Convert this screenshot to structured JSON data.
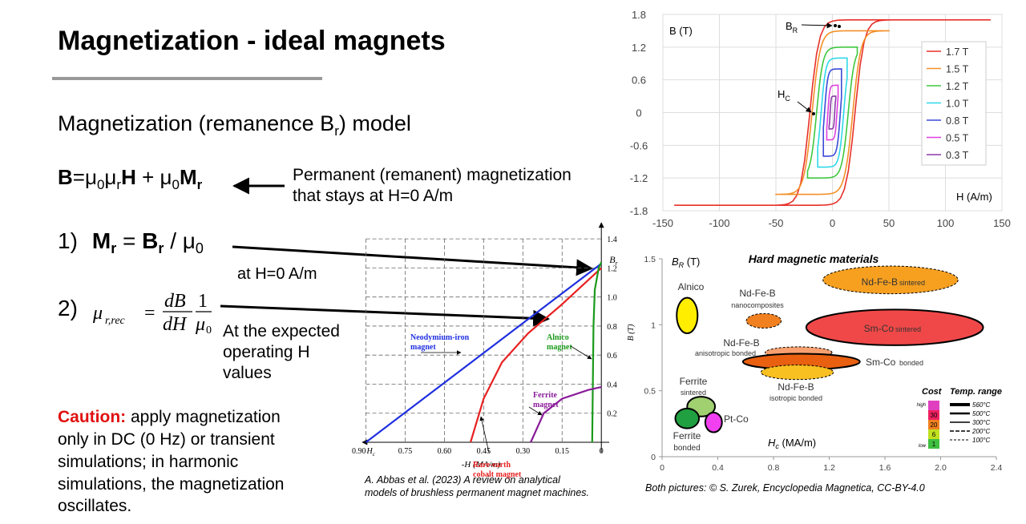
{
  "title": "Magnetization - ideal magnets",
  "subtitle": [
    "Magnetization (remanence B",
    "r",
    ") model"
  ],
  "eq1": [
    "B",
    "=μ",
    "0",
    "μ",
    "r",
    "H",
    " + μ",
    "0",
    "M",
    "r"
  ],
  "eq1_note": [
    "Permanent (remanent) magnetization",
    "that stays at H=0 A/m"
  ],
  "eq2": [
    "1)",
    "M",
    "r",
    " = ",
    "B",
    "r",
    " / μ",
    "0"
  ],
  "eq2_note": "at H=0 A/m",
  "eq3_label": "2)",
  "eq3": {
    "lhs": "μ",
    "lhs_sub": "r,rec",
    "eq": "=",
    "num1": "dB",
    "den1": "dH",
    "num2": "1",
    "den2": "μ",
    "den2_sub": "0"
  },
  "eq3_note": [
    "At the expected",
    "operating H",
    "values"
  ],
  "caution_head": "Caution:",
  "caution": [
    " apply magnetization",
    "only in DC (0 Hz) or transient",
    "simulations; in harmonic",
    "simulations, the magnetization",
    "oscillates."
  ],
  "citation": [
    "A. Abbas et al. (2023) A review on analytical",
    "models of brushless permanent magnet machines."
  ],
  "credit": "Both pictures: © S. Zurek, Encyclopedia Magnetica, CC-BY-4.0",
  "hysteresis": {
    "type": "line",
    "ylabel": "B (T)",
    "xlabel": "H (A/m)",
    "xlim": [
      -150,
      150
    ],
    "ylim": [
      -1.8,
      1.8
    ],
    "xticks": [
      -150,
      -100,
      -50,
      0,
      50,
      100,
      150
    ],
    "yticks": [
      -1.8,
      -1.2,
      -0.6,
      0,
      0.6,
      1.2,
      1.8
    ],
    "grid": true,
    "br_label": [
      "B",
      "R"
    ],
    "hc_label": [
      "H",
      "C"
    ],
    "series": [
      {
        "name": "1.7 T",
        "color": "#e8302a",
        "bmax": 1.7,
        "hmax": 140,
        "hc": 20
      },
      {
        "name": "1.5 T",
        "color": "#f39028",
        "bmax": 1.5,
        "hmax": 50,
        "hc": 18
      },
      {
        "name": "1.2 T",
        "color": "#3ec83e",
        "bmax": 1.2,
        "hmax": 22,
        "hc": 14
      },
      {
        "name": "1.0 T",
        "color": "#2ed8e8",
        "bmax": 1.0,
        "hmax": 13,
        "hc": 10
      },
      {
        "name": "0.8 T",
        "color": "#3a4ad8",
        "bmax": 0.8,
        "hmax": 8,
        "hc": 7
      },
      {
        "name": "0.5 T",
        "color": "#e040e0",
        "bmax": 0.5,
        "hmax": 5,
        "hc": 4
      },
      {
        "name": "0.3 T",
        "color": "#8a3aa8",
        "bmax": 0.3,
        "hmax": 3,
        "hc": 2
      }
    ]
  },
  "demag": {
    "type": "line",
    "ylabel": "B (T)",
    "xlabel": "-H (MA/m)",
    "br_label": [
      "B",
      "r"
    ],
    "hc_label": [
      "H",
      "c"
    ],
    "xlim": [
      0.92,
      -0.03
    ],
    "ylim": [
      0,
      1.5
    ],
    "xticks": [
      {
        "value": 0.9,
        "label": "0.90"
      },
      0.75,
      {
        "value": 0.6,
        "label": "0.60"
      },
      0.45,
      {
        "value": 0.3,
        "label": "0.30"
      },
      0.15,
      0
    ],
    "yticks": [
      0.2,
      0.4,
      0.6,
      0.8,
      {
        "value": 1,
        "label": "1.0"
      },
      1.2,
      1.4
    ],
    "grid": true,
    "series": [
      {
        "name": [
          "Neodymium-iron",
          "magnet"
        ],
        "color": "#1f2fe0",
        "x": [
          0.9,
          0
        ],
        "y": [
          0,
          1.23
        ]
      },
      {
        "name": [
          "Rare-earth",
          "cobalt magnet"
        ],
        "color": "#e82020",
        "x": [
          0.5,
          0.45,
          0.38,
          0.28,
          0.15,
          0
        ],
        "y": [
          0,
          0.3,
          0.55,
          0.75,
          0.95,
          1.2
        ]
      },
      {
        "name": [
          "Alnico",
          "magnet"
        ],
        "color": "#1a9a1a",
        "x": [
          0.035,
          0.03,
          0.025,
          0.01,
          0
        ],
        "y": [
          0,
          0.8,
          1.05,
          1.2,
          1.24
        ]
      },
      {
        "name": [
          "Ferrite",
          "magnet"
        ],
        "color": "#8a1a9a",
        "x": [
          0.27,
          0.22,
          0.15,
          0.05,
          0
        ],
        "y": [
          0,
          0.2,
          0.3,
          0.36,
          0.38
        ]
      }
    ]
  },
  "materials": {
    "type": "ellipse",
    "title": "Hard magnetic materials",
    "ylabel": [
      "B",
      "R",
      " (T)"
    ],
    "xlabel": [
      "H",
      "c",
      " (MA/m)"
    ],
    "xlim": [
      0,
      2.4
    ],
    "ylim": [
      0,
      1.5
    ],
    "xticks": [
      0,
      0.4,
      0.8,
      1.2,
      1.6,
      {
        "value": 2,
        "label": "2.0"
      },
      2.4
    ],
    "yticks": [
      0,
      0.5,
      1,
      1.5
    ],
    "items": [
      {
        "label": [
          "Alnico"
        ],
        "hc": 0.18,
        "br": 1.07,
        "w": 0.15,
        "h": 0.27,
        "color": "#ffee00",
        "dashed": false
      },
      {
        "label": [
          "Nd-Fe-B",
          "nanocomposites"
        ],
        "hc": 0.73,
        "br": 1.03,
        "w": 0.25,
        "h": 0.11,
        "color": "#f08020",
        "dashed": true
      },
      {
        "label": [
          "Nd-Fe-B",
          "sintered"
        ],
        "hc": 1.64,
        "br": 1.34,
        "w": 0.97,
        "h": 0.21,
        "color": "#f7a020",
        "dashed": true
      },
      {
        "label": [
          "Sm-Co",
          "sintered"
        ],
        "hc": 1.67,
        "br": 0.98,
        "w": 1.27,
        "h": 0.27,
        "color": "#f04848",
        "dashed": false
      },
      {
        "label": [
          "Nd-Fe-B",
          "anisotropic bonded"
        ],
        "hc": 0.98,
        "br": 0.79,
        "w": 0.48,
        "h": 0.085,
        "color": "#f8a070",
        "dashed": true
      },
      {
        "label": [
          "Sm-Co",
          "bonded"
        ],
        "hc": 1.0,
        "br": 0.72,
        "w": 0.84,
        "h": 0.12,
        "color": "#e86010",
        "dashed": false
      },
      {
        "label": [
          "Nd-Fe-B",
          "isotropic bonded"
        ],
        "hc": 0.97,
        "br": 0.64,
        "w": 0.52,
        "h": 0.11,
        "color": "#f8c020",
        "dashed": true
      },
      {
        "label": [
          "Ferrite",
          "sintered"
        ],
        "hc": 0.28,
        "br": 0.38,
        "w": 0.2,
        "h": 0.15,
        "color": "#a0d070",
        "dashed": false
      },
      {
        "label": [
          "Ferrite",
          "bonded"
        ],
        "hc": 0.18,
        "br": 0.29,
        "w": 0.17,
        "h": 0.15,
        "color": "#20a040",
        "dashed": false
      },
      {
        "label": [
          "Pt-Co"
        ],
        "hc": 0.37,
        "br": 0.26,
        "w": 0.12,
        "h": 0.15,
        "color": "#f040f0",
        "dashed": false
      }
    ],
    "cost": {
      "title": "Cost",
      "high": "high",
      "low": "low",
      "levels": [
        "30",
        "20",
        "6",
        "1"
      ],
      "colors": [
        "#e040c0",
        "#f02060",
        "#f08020",
        "#c0e020",
        "#40c040"
      ]
    },
    "temp": {
      "title": "Temp. range",
      "levels": [
        "560°C",
        "500°C",
        "300°C",
        "200°C",
        "100°C"
      ]
    }
  }
}
